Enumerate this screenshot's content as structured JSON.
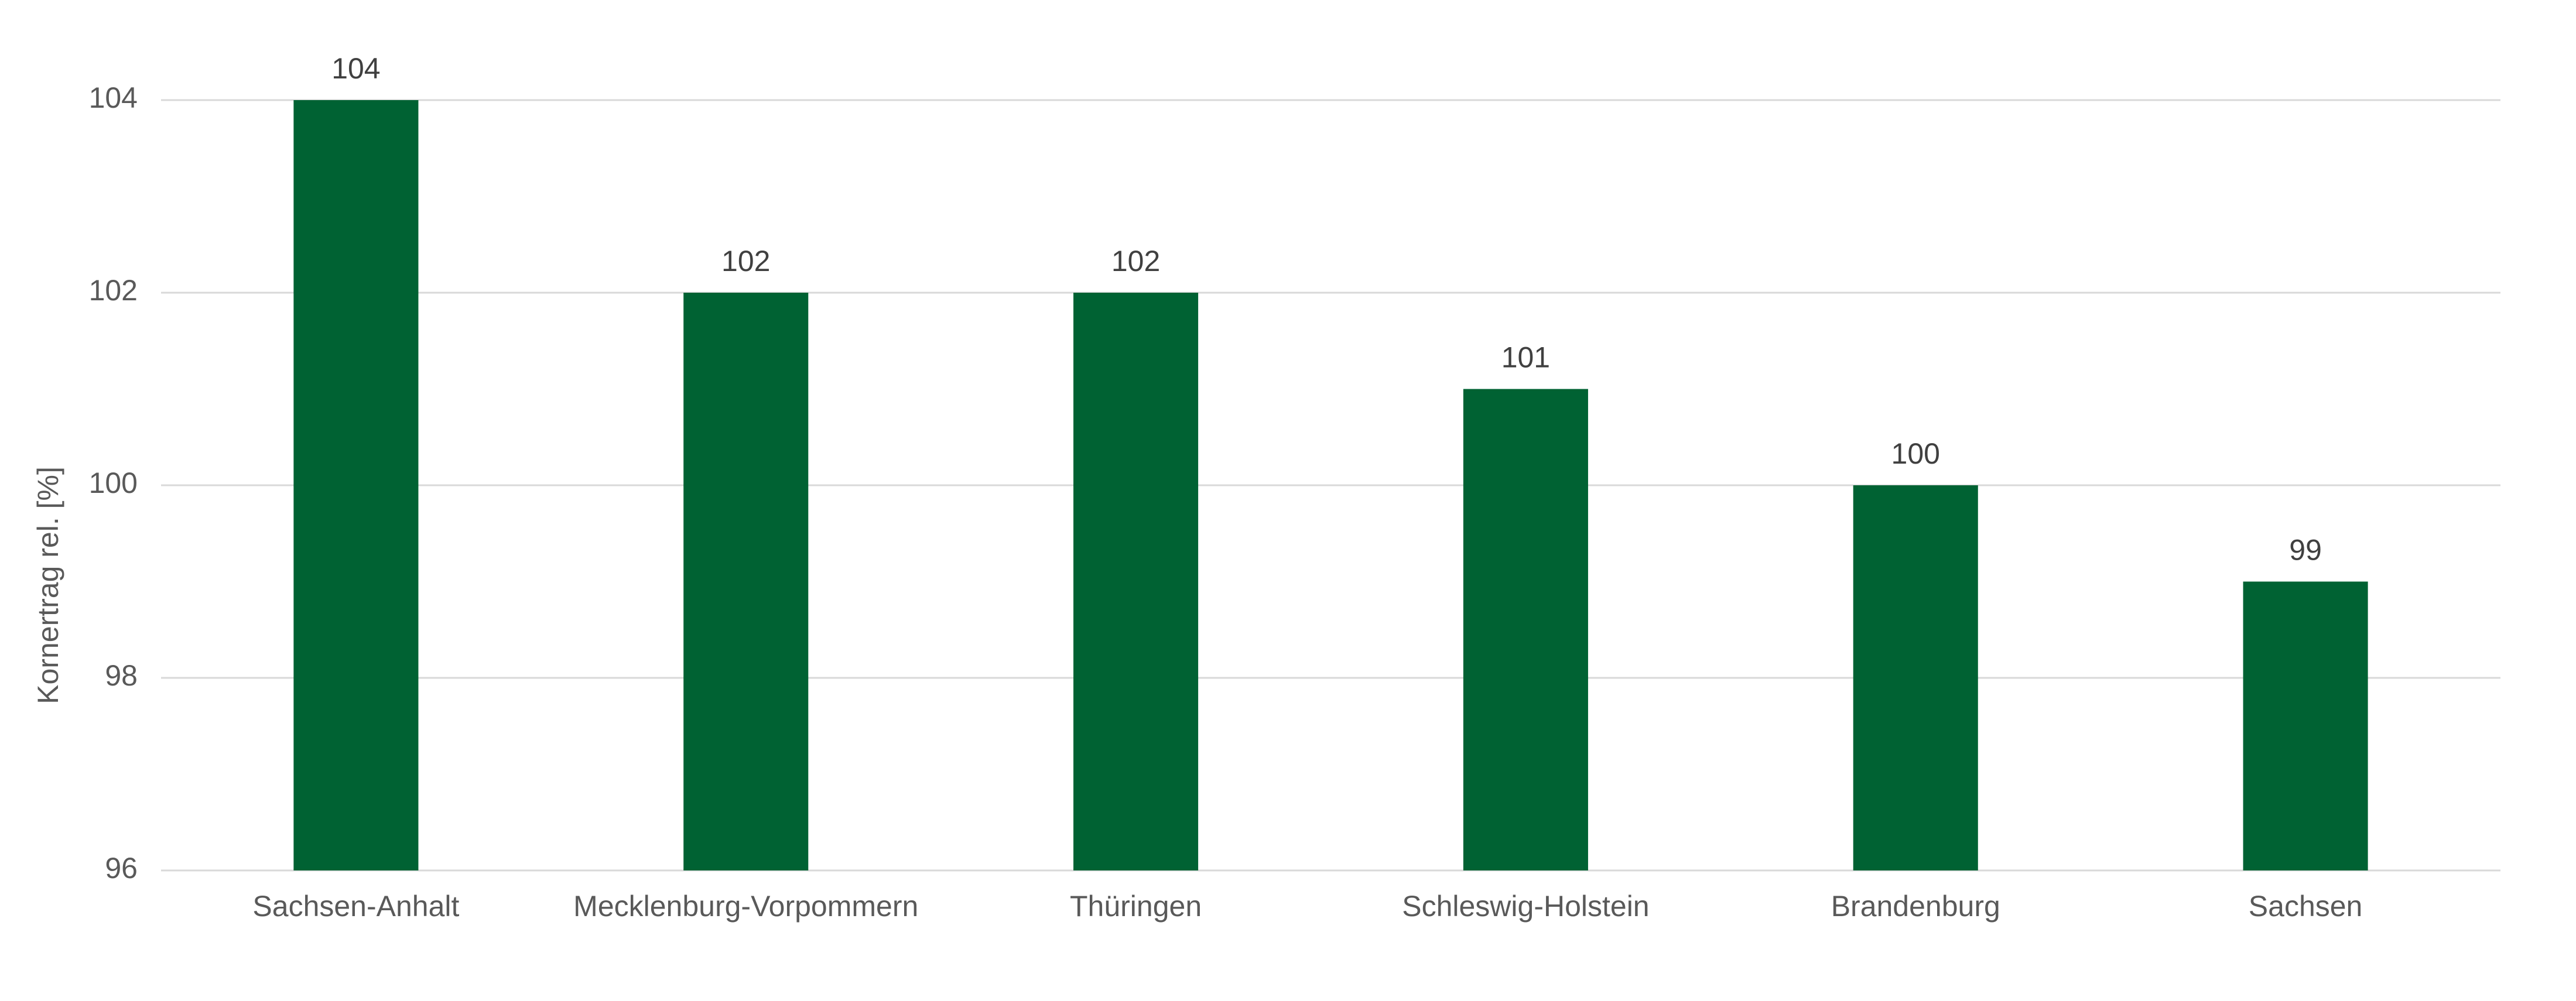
{
  "chart_data": {
    "type": "bar",
    "y_label": "Kornertrag rel. [%]",
    "categories": [
      "Sachsen-Anhalt",
      "Mecklenburg-Vorpommern",
      "Thüringen",
      "Schleswig-Holstein",
      "Brandenburg",
      "Sachsen"
    ],
    "values": [
      104,
      102,
      102,
      101,
      100,
      99
    ],
    "color": "#006233",
    "ylim": [
      96,
      104
    ],
    "yticks": [
      96,
      98,
      100,
      102,
      104
    ],
    "grid": true,
    "data_labels": true
  }
}
